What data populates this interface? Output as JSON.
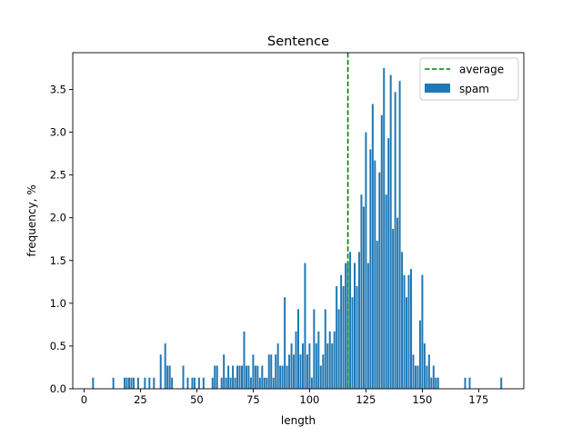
{
  "chart_data": {
    "type": "bar",
    "title": "Sentence",
    "xlabel": "length",
    "ylabel": "frequency, %",
    "xlim": [
      -5,
      195
    ],
    "ylim": [
      0,
      3.93
    ],
    "xticks": [
      0,
      25,
      50,
      75,
      100,
      125,
      150,
      175
    ],
    "yticks": [
      0.0,
      0.5,
      1.0,
      1.5,
      2.0,
      2.5,
      3.0,
      3.5
    ],
    "xtick_labels": [
      "0",
      "25",
      "50",
      "75",
      "100",
      "125",
      "150",
      "175"
    ],
    "ytick_labels": [
      "0.0",
      "0.5",
      "1.0",
      "1.5",
      "2.0",
      "2.5",
      "3.0",
      "3.5"
    ],
    "grid": false,
    "legend_position": "top-right",
    "bar_color": "#1f77b4",
    "average_color": "#008000",
    "average": {
      "name": "average",
      "x": 117
    },
    "series": [
      {
        "name": "spam",
        "points": [
          [
            4,
            0.13
          ],
          [
            13,
            0.13
          ],
          [
            18,
            0.13
          ],
          [
            19,
            0.13
          ],
          [
            20,
            0.13
          ],
          [
            21,
            0.13
          ],
          [
            22,
            0.13
          ],
          [
            24,
            0.13
          ],
          [
            27,
            0.13
          ],
          [
            29,
            0.13
          ],
          [
            31,
            0.13
          ],
          [
            34,
            0.4
          ],
          [
            36,
            0.53
          ],
          [
            37,
            0.27
          ],
          [
            38,
            0.27
          ],
          [
            39,
            0.13
          ],
          [
            44,
            0.27
          ],
          [
            46,
            0.13
          ],
          [
            48,
            0.13
          ],
          [
            49,
            0.13
          ],
          [
            51,
            0.13
          ],
          [
            53,
            0.13
          ],
          [
            57,
            0.13
          ],
          [
            58,
            0.27
          ],
          [
            59,
            0.27
          ],
          [
            61,
            0.13
          ],
          [
            62,
            0.4
          ],
          [
            63,
            0.13
          ],
          [
            64,
            0.27
          ],
          [
            65,
            0.13
          ],
          [
            66,
            0.27
          ],
          [
            67,
            0.13
          ],
          [
            68,
            0.27
          ],
          [
            69,
            0.27
          ],
          [
            70,
            0.27
          ],
          [
            71,
            0.67
          ],
          [
            72,
            0.27
          ],
          [
            73,
            0.27
          ],
          [
            74,
            0.13
          ],
          [
            75,
            0.4
          ],
          [
            76,
            0.27
          ],
          [
            77,
            0.27
          ],
          [
            78,
            0.13
          ],
          [
            79,
            0.27
          ],
          [
            80,
            0.13
          ],
          [
            81,
            0.13
          ],
          [
            82,
            0.4
          ],
          [
            83,
            0.4
          ],
          [
            84,
            0.13
          ],
          [
            85,
            0.4
          ],
          [
            86,
            0.53
          ],
          [
            87,
            0.27
          ],
          [
            88,
            0.27
          ],
          [
            89,
            1.07
          ],
          [
            90,
            0.27
          ],
          [
            91,
            0.4
          ],
          [
            92,
            0.53
          ],
          [
            93,
            0.4
          ],
          [
            94,
            0.67
          ],
          [
            95,
            0.93
          ],
          [
            96,
            0.4
          ],
          [
            97,
            0.53
          ],
          [
            98,
            1.47
          ],
          [
            99,
            0.4
          ],
          [
            100,
            0.53
          ],
          [
            101,
            0.13
          ],
          [
            102,
            0.93
          ],
          [
            103,
            0.53
          ],
          [
            104,
            0.67
          ],
          [
            105,
            0.27
          ],
          [
            106,
            0.4
          ],
          [
            107,
            0.93
          ],
          [
            108,
            0.53
          ],
          [
            109,
            0.67
          ],
          [
            110,
            0.53
          ],
          [
            111,
            0.67
          ],
          [
            112,
            1.2
          ],
          [
            113,
            0.93
          ],
          [
            114,
            1.33
          ],
          [
            115,
            1.2
          ],
          [
            116,
            1.47
          ],
          [
            117,
            1.47
          ],
          [
            118,
            1.6
          ],
          [
            119,
            1.07
          ],
          [
            120,
            1.47
          ],
          [
            121,
            1.2
          ],
          [
            122,
            1.6
          ],
          [
            123,
            2.27
          ],
          [
            124,
            2.13
          ],
          [
            125,
            3.0
          ],
          [
            126,
            1.47
          ],
          [
            127,
            2.8
          ],
          [
            128,
            3.33
          ],
          [
            129,
            2.67
          ],
          [
            130,
            1.73
          ],
          [
            131,
            2.53
          ],
          [
            132,
            3.2
          ],
          [
            133,
            3.75
          ],
          [
            134,
            2.27
          ],
          [
            135,
            2.93
          ],
          [
            136,
            3.67
          ],
          [
            137,
            1.87
          ],
          [
            138,
            3.47
          ],
          [
            139,
            2.0
          ],
          [
            140,
            3.6
          ],
          [
            141,
            1.6
          ],
          [
            142,
            1.33
          ],
          [
            143,
            1.07
          ],
          [
            144,
            1.33
          ],
          [
            145,
            1.4
          ],
          [
            146,
            0.4
          ],
          [
            147,
            0.27
          ],
          [
            148,
            0.27
          ],
          [
            149,
            0.8
          ],
          [
            150,
            1.33
          ],
          [
            151,
            0.53
          ],
          [
            152,
            0.27
          ],
          [
            153,
            0.4
          ],
          [
            154,
            0.13
          ],
          [
            155,
            0.27
          ],
          [
            156,
            0.13
          ],
          [
            157,
            0.13
          ],
          [
            169,
            0.13
          ],
          [
            171,
            0.13
          ],
          [
            185,
            0.13
          ]
        ]
      }
    ]
  }
}
